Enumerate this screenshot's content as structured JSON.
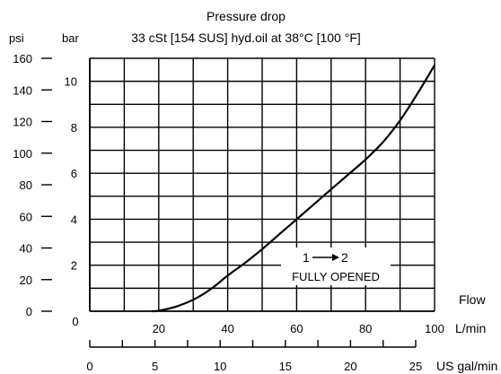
{
  "chart_data": {
    "type": "line",
    "title": "Pressure drop",
    "subtitle": "33 cSt [154 SUS] hyd.oil at 38°C [100 °F]",
    "axes": {
      "x_primary": {
        "label": "L/min",
        "range": [
          0,
          100
        ],
        "ticks": [
          0,
          20,
          40,
          60,
          80,
          100
        ],
        "tick_labels": [
          "0",
          "20",
          "40",
          "60",
          "80",
          "100"
        ]
      },
      "x_secondary": {
        "label": "US gal/min",
        "ticks": [
          0,
          5,
          10,
          15,
          20,
          25
        ],
        "tick_labels": [
          "0",
          "5",
          "10",
          "15",
          "20",
          "25"
        ]
      },
      "y_primary": {
        "label": "bar",
        "range": [
          0,
          11
        ],
        "tick_labels": [
          "2",
          "4",
          "6",
          "8",
          "10"
        ],
        "ticks": [
          2,
          4,
          6,
          8,
          10
        ]
      },
      "y_secondary": {
        "label": "psi",
        "tick_labels": [
          "0",
          "20",
          "40",
          "60",
          "80",
          "100",
          "120",
          "140",
          "160"
        ],
        "ticks": [
          0,
          20,
          40,
          60,
          80,
          100,
          120,
          140,
          160
        ]
      },
      "flow_label": "Flow",
      "grid": true
    },
    "series": [
      {
        "color": "#000000",
        "x": [
          18,
          20,
          25,
          30,
          35,
          40,
          45,
          50,
          55,
          60,
          65,
          70,
          75,
          80,
          85,
          90,
          95,
          100
        ],
        "y": [
          0,
          0.02,
          0.2,
          0.5,
          0.95,
          1.55,
          2.1,
          2.7,
          3.35,
          4.0,
          4.65,
          5.3,
          5.95,
          6.6,
          7.35,
          8.3,
          9.45,
          10.7
        ]
      }
    ],
    "annotation": {
      "arrow_from": "1",
      "arrow_to": "2",
      "text": "FULLY OPENED"
    }
  }
}
